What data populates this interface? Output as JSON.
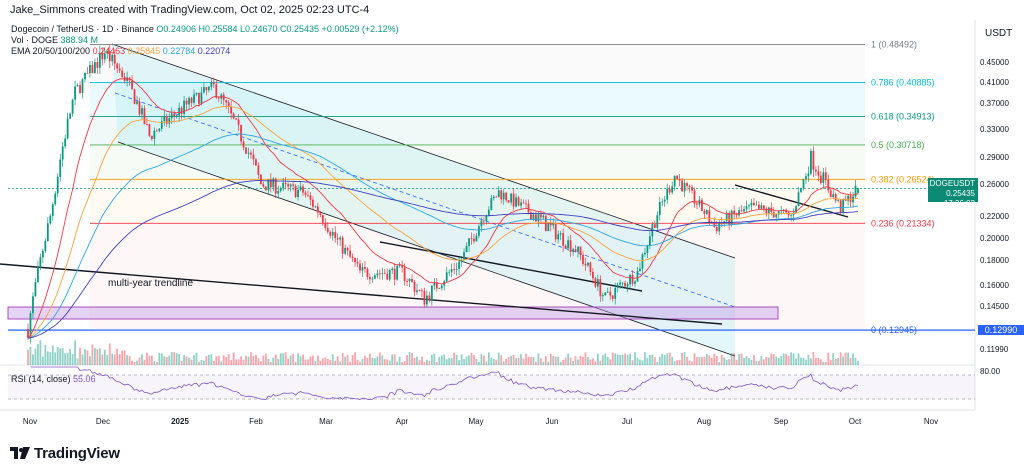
{
  "header": {
    "author_line": "Jake_Simmons created with TradingView.com, Oct 02, 2025 02:23 UTC-4"
  },
  "legend": {
    "symbol": "Dogecoin / TetherUS · 1D · Binance",
    "ohlc": "O0.24906 H0.25584 L0.24670 C0.25435 +0.00529 (+2.12%)",
    "vol_label": "Vol · DOGE",
    "vol_value": "388.94 M",
    "ema_label": "EMA 20/50/100/200",
    "ema_values": [
      "0.24463",
      "0.25845",
      "0.22784",
      "0.22074"
    ]
  },
  "price_axis": {
    "title": "USDT",
    "ticks": [
      "0.45000",
      "0.41000",
      "0.37000",
      "0.33000",
      "0.29000",
      "0.26000",
      "0.22000",
      "0.20000",
      "0.18000",
      "0.16000",
      "0.14500",
      "0.13000",
      "0.11990"
    ],
    "last_price_symbol": "DOGEUSDT",
    "last_price": "0.25435",
    "countdown": "17:36:02",
    "level_tag": "0.12990"
  },
  "rsi": {
    "label": "RSI (14, close)",
    "value": "55.06",
    "upper_tick": "80.00"
  },
  "time_axis": {
    "labels": [
      "Nov",
      "Dec",
      "2025",
      "Feb",
      "Mar",
      "Apr",
      "May",
      "Jun",
      "Jul",
      "Aug",
      "Sep",
      "Oct",
      "Nov"
    ]
  },
  "chart_data": {
    "type": "candlestick",
    "title": "Dogecoin / TetherUS · 1D · Binance",
    "ylabel": "USDT",
    "ylim": [
      0.1,
      0.5
    ],
    "fibonacci": [
      {
        "label": "1 (0.48492)",
        "value": 0.48492
      },
      {
        "label": "0.786 (0.40885)",
        "value": 0.40885
      },
      {
        "label": "0.618 (0.34913)",
        "value": 0.34913
      },
      {
        "label": "0.5 (0.30718)",
        "value": 0.30718
      },
      {
        "label": "0.382 (0.26524)",
        "value": 0.26524
      },
      {
        "label": "0.236 (0.21334)",
        "value": 0.21334
      },
      {
        "label": "0 (0.12945)",
        "value": 0.12945
      }
    ],
    "annotations": [
      "multi-year trendline"
    ],
    "price_path": [
      {
        "t": "Nov 01",
        "close": 0.13
      },
      {
        "t": "Nov 10",
        "close": 0.22
      },
      {
        "t": "Nov 20",
        "close": 0.39
      },
      {
        "t": "Dec 02",
        "close": 0.47
      },
      {
        "t": "Dec 10",
        "close": 0.42
      },
      {
        "t": "Dec 20",
        "close": 0.32
      },
      {
        "t": "Jan 05",
        "close": 0.37
      },
      {
        "t": "Jan 15",
        "close": 0.4
      },
      {
        "t": "Feb 03",
        "close": 0.26
      },
      {
        "t": "Feb 20",
        "close": 0.25
      },
      {
        "t": "Mar 05",
        "close": 0.2
      },
      {
        "t": "Mar 15",
        "close": 0.17
      },
      {
        "t": "Apr 01",
        "close": 0.17
      },
      {
        "t": "Apr 10",
        "close": 0.15
      },
      {
        "t": "Apr 25",
        "close": 0.18
      },
      {
        "t": "May 10",
        "close": 0.25
      },
      {
        "t": "May 25",
        "close": 0.22
      },
      {
        "t": "Jun 10",
        "close": 0.19
      },
      {
        "t": "Jun 22",
        "close": 0.15
      },
      {
        "t": "Jul 05",
        "close": 0.17
      },
      {
        "t": "Jul 20",
        "close": 0.27
      },
      {
        "t": "Aug 05",
        "close": 0.21
      },
      {
        "t": "Aug 20",
        "close": 0.23
      },
      {
        "t": "Sep 05",
        "close": 0.22
      },
      {
        "t": "Sep 13",
        "close": 0.29
      },
      {
        "t": "Sep 25",
        "close": 0.23
      },
      {
        "t": "Oct 02",
        "close": 0.25435
      }
    ]
  },
  "colors": {
    "up": "#089981",
    "down": "#f23645",
    "fib_0": "#2962ff",
    "zone": "#c59ee8",
    "channel": "#b2ebf2"
  },
  "branding": {
    "logo": "TradingView"
  }
}
